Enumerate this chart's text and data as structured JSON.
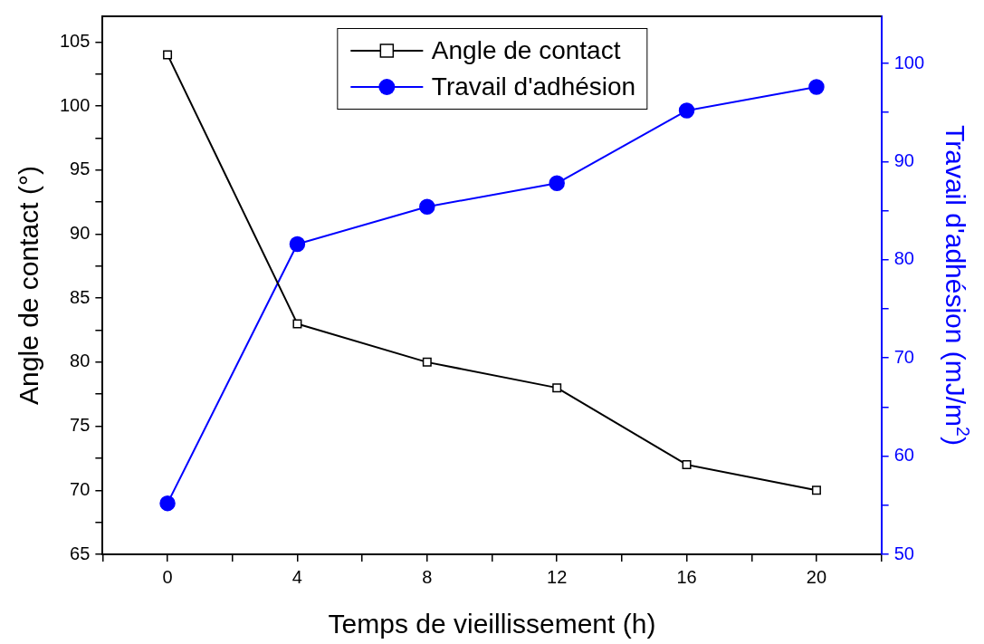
{
  "chart_data": {
    "type": "line",
    "xlabel": "Temps de vieillissement (h)",
    "ylabel": "Angle de contact (°)",
    "y2label": "Travail d'adhésion (mJ/m$^{2}$)",
    "x": [
      0,
      4,
      8,
      12,
      16,
      20
    ],
    "series": [
      {
        "name": "Angle de contact",
        "color": "#000000",
        "marker": "square",
        "values": [
          104,
          83,
          80,
          78,
          72,
          70
        ]
      },
      {
        "name": "Travail d'adhésion",
        "color": "#0000ff",
        "marker": "circle",
        "axis": "y2",
        "values": [
          55.2,
          81.6,
          85.4,
          87.8,
          95.2,
          97.6
        ]
      }
    ],
    "xlim": [
      -2,
      22
    ],
    "xticks": [
      {
        "value": -2,
        "label": null
      },
      0,
      {
        "value": 2,
        "label": null
      },
      4,
      {
        "value": 6,
        "label": null
      },
      8,
      {
        "value": 10,
        "label": null
      },
      12,
      {
        "value": 14,
        "label": null
      },
      16,
      {
        "value": 18,
        "label": null
      },
      20,
      {
        "value": 22,
        "label": null
      }
    ],
    "ylim": [
      65,
      107
    ],
    "yticks": [
      65,
      {
        "value": 67.5,
        "label": null
      },
      70,
      {
        "value": 72.5,
        "label": null
      },
      75,
      {
        "value": 77.5,
        "label": null
      },
      80,
      {
        "value": 82.5,
        "label": null
      },
      85,
      {
        "value": 87.5,
        "label": null
      },
      90,
      {
        "value": 92.5,
        "label": null
      },
      95,
      {
        "value": 97.5,
        "label": null
      },
      100,
      {
        "value": 102.5,
        "label": null
      },
      105
    ],
    "y2lim": [
      50,
      104.8
    ],
    "y2ticks": [
      50,
      {
        "value": 55,
        "label": null
      },
      60,
      {
        "value": 65,
        "label": null
      },
      70,
      {
        "value": 75,
        "label": null
      },
      80,
      {
        "value": 85,
        "label": null
      },
      90,
      {
        "value": 95,
        "label": null
      },
      100
    ],
    "grid": false,
    "legend": "top",
    "line_style": "solid"
  }
}
